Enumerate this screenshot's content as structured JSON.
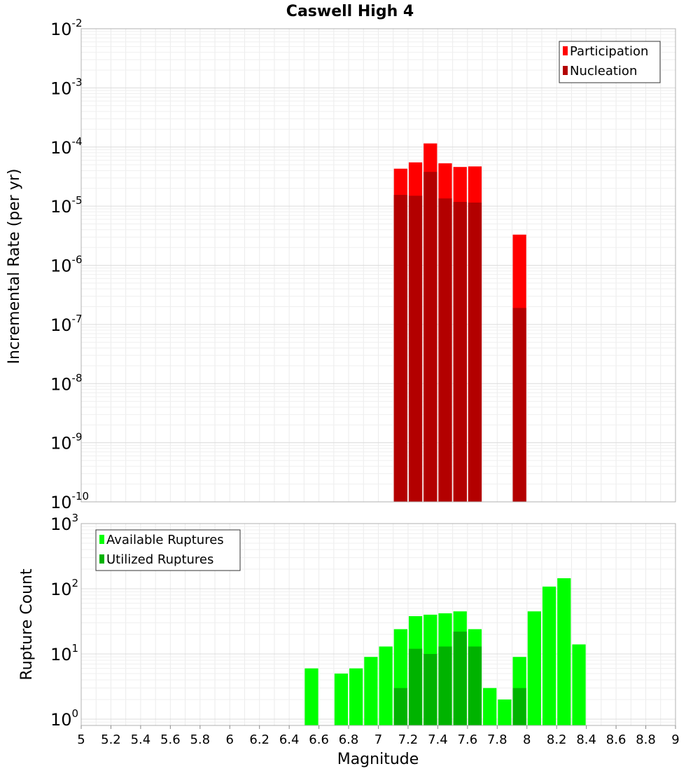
{
  "chart_data": [
    {
      "type": "bar",
      "title": "Caswell High 4",
      "xlabel": "",
      "ylabel": "Incremental Rate (per yr)",
      "yscale": "log",
      "ylim": [
        1e-10,
        0.01
      ],
      "xlim": [
        5,
        9
      ],
      "bin_width": 0.1,
      "grid": true,
      "legend_position": "top-right",
      "series": [
        {
          "name": "Participation",
          "color": "#ff0000",
          "x": [
            7.15,
            7.25,
            7.35,
            7.45,
            7.55,
            7.65,
            7.95
          ],
          "values": [
            4.3e-05,
            5.5e-05,
            0.000115,
            5.3e-05,
            4.6e-05,
            4.7e-05,
            3.3e-06
          ]
        },
        {
          "name": "Nucleation",
          "color": "#b30000",
          "x": [
            7.15,
            7.25,
            7.35,
            7.45,
            7.55,
            7.65,
            7.95
          ],
          "values": [
            1.55e-05,
            1.5e-05,
            3.8e-05,
            1.35e-05,
            1.18e-05,
            1.15e-05,
            1.9e-07
          ]
        }
      ],
      "y_ticks": [
        {
          "base": "10",
          "exp": "-2",
          "value": 0.01
        },
        {
          "base": "10",
          "exp": "-3",
          "value": 0.001
        },
        {
          "base": "10",
          "exp": "-4",
          "value": 0.0001
        },
        {
          "base": "10",
          "exp": "-5",
          "value": 1e-05
        },
        {
          "base": "10",
          "exp": "-6",
          "value": 1e-06
        },
        {
          "base": "10",
          "exp": "-7",
          "value": 1e-07
        },
        {
          "base": "10",
          "exp": "-8",
          "value": 1e-08
        },
        {
          "base": "10",
          "exp": "-9",
          "value": 1e-09
        },
        {
          "base": "10",
          "exp": "-10",
          "value": 1e-10
        }
      ]
    },
    {
      "type": "bar",
      "title": "",
      "xlabel": "Magnitude",
      "ylabel": "Rupture Count",
      "yscale": "log",
      "ylim": [
        0.8,
        1000
      ],
      "xlim": [
        5,
        9
      ],
      "bin_width": 0.1,
      "grid": true,
      "legend_position": "top-left",
      "series": [
        {
          "name": "Available Ruptures",
          "color": "#00ff00",
          "x": [
            6.55,
            6.75,
            6.85,
            6.95,
            7.05,
            7.15,
            7.25,
            7.35,
            7.45,
            7.55,
            7.65,
            7.75,
            7.85,
            7.95,
            8.05,
            8.15,
            8.25,
            8.35
          ],
          "values": [
            6,
            5,
            6,
            9,
            13,
            24,
            38,
            40,
            42,
            45,
            24,
            3,
            2,
            9,
            45,
            108,
            145,
            14
          ]
        },
        {
          "name": "Utilized Ruptures",
          "color": "#00b300",
          "x": [
            7.15,
            7.25,
            7.35,
            7.45,
            7.55,
            7.65,
            7.95
          ],
          "values": [
            3,
            12,
            10,
            13,
            22,
            13,
            3
          ]
        }
      ],
      "y_ticks": [
        {
          "base": "10",
          "exp": "3",
          "value": 1000
        },
        {
          "base": "10",
          "exp": "2",
          "value": 100
        },
        {
          "base": "10",
          "exp": "1",
          "value": 10
        },
        {
          "base": "10",
          "exp": "0",
          "value": 1
        }
      ],
      "x_ticks": [
        "5",
        "5.2",
        "5.4",
        "5.6",
        "5.8",
        "6",
        "6.2",
        "6.4",
        "6.6",
        "6.8",
        "7",
        "7.2",
        "7.4",
        "7.6",
        "7.8",
        "8",
        "8.2",
        "8.4",
        "8.6",
        "8.8",
        "9"
      ]
    }
  ]
}
